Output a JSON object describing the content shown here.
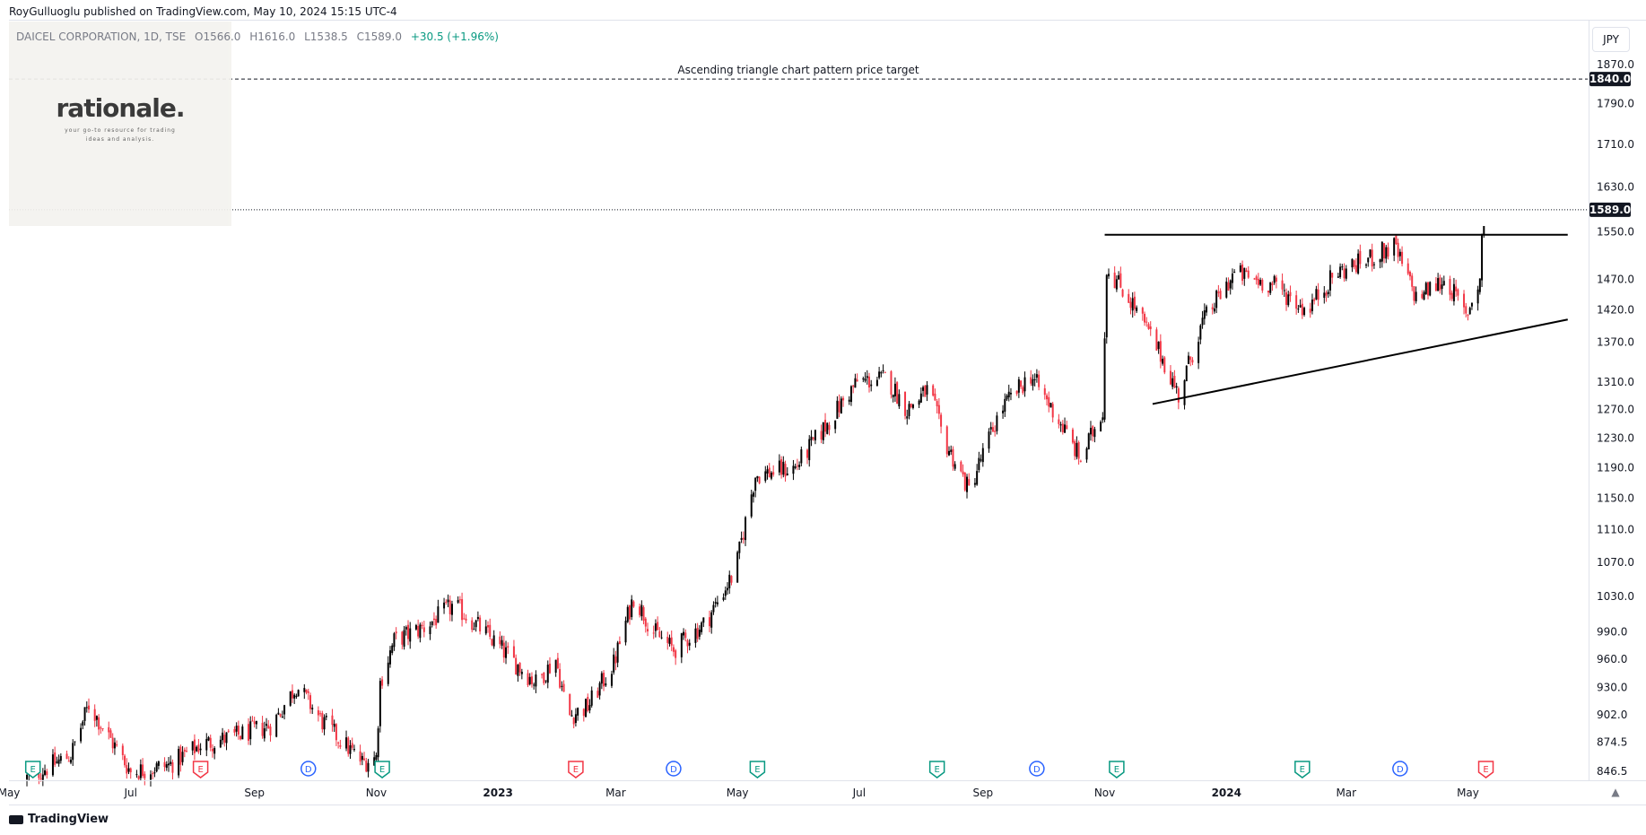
{
  "header": {
    "publish_line": "RoyGulluoglu published on TradingView.com, May 10, 2024 15:15 UTC-4"
  },
  "legend": {
    "symbol": "DAICEL CORPORATION, 1D, TSE",
    "open": "O1566.0",
    "high": "H1616.0",
    "low": "L1538.5",
    "close": "C1589.0",
    "change": "+30.5 (+1.96%)"
  },
  "watermark": {
    "title": "rationale.",
    "subtitle": "your go-to resource for trading ideas and analysis."
  },
  "currency": "JPY",
  "footer": {
    "brand": "TradingView"
  },
  "colors": {
    "up": "#000000",
    "down": "#f23645",
    "accent_black": "#131722",
    "earnings": "#089981",
    "dividend": "#2962ff",
    "earnings_red": "#f23645"
  },
  "chart_data": {
    "type": "candlestick",
    "symbol": "DAICEL CORPORATION",
    "interval": "1D",
    "exchange": "TSE",
    "y_axis_ticks": [
      846.5,
      874.5,
      902.0,
      930.0,
      960.0,
      990.0,
      1030.0,
      1070.0,
      1110.0,
      1150.0,
      1190.0,
      1230.0,
      1270.0,
      1310.0,
      1370.0,
      1420.0,
      1470.0,
      1550.0,
      1630.0,
      1710.0,
      1790.0,
      1870.0
    ],
    "y_axis_scale": "log",
    "ylim": [
      840,
      1900
    ],
    "x_axis_labels": [
      "May",
      "Jul",
      "Sep",
      "Nov",
      "2023",
      "Mar",
      "May",
      "Jul",
      "Sep",
      "Nov",
      "2024",
      "Mar",
      "May"
    ],
    "x_range": [
      "2022-05-01",
      "2024-06-30"
    ],
    "current_price": 1589.0,
    "target_price": 1840.0,
    "target_label": "Ascending triangle chart pattern price target",
    "resistance": {
      "value": 1545,
      "from": "2023-11-01",
      "to": "2024-06-20"
    },
    "support_trendline": [
      {
        "date": "2023-11-25",
        "price": 1278
      },
      {
        "date": "2024-06-20",
        "price": 1405
      }
    ],
    "price_path": [
      [
        "2022-05-10",
        840
      ],
      [
        "2022-06-01",
        862
      ],
      [
        "2022-06-10",
        912
      ],
      [
        "2022-06-20",
        880
      ],
      [
        "2022-07-01",
        846
      ],
      [
        "2022-07-20",
        852
      ],
      [
        "2022-08-05",
        872
      ],
      [
        "2022-08-25",
        882
      ],
      [
        "2022-09-10",
        892
      ],
      [
        "2022-09-22",
        932
      ],
      [
        "2022-10-05",
        895
      ],
      [
        "2022-10-25",
        855
      ],
      [
        "2022-11-01",
        860
      ],
      [
        "2022-11-03",
        935
      ],
      [
        "2022-11-10",
        980
      ],
      [
        "2022-11-25",
        995
      ],
      [
        "2022-12-10",
        1020
      ],
      [
        "2022-12-25",
        990
      ],
      [
        "2023-01-10",
        955
      ],
      [
        "2023-01-20",
        935
      ],
      [
        "2023-01-30",
        960
      ],
      [
        "2023-02-05",
        900
      ],
      [
        "2023-02-15",
        910
      ],
      [
        "2023-02-28",
        955
      ],
      [
        "2023-03-10",
        1030
      ],
      [
        "2023-03-20",
        990
      ],
      [
        "2023-03-30",
        970
      ],
      [
        "2023-04-15",
        1000
      ],
      [
        "2023-04-30",
        1060
      ],
      [
        "2023-05-10",
        1180
      ],
      [
        "2023-05-30",
        1190
      ],
      [
        "2023-06-15",
        1250
      ],
      [
        "2023-06-30",
        1310
      ],
      [
        "2023-07-15",
        1315
      ],
      [
        "2023-07-25",
        1270
      ],
      [
        "2023-08-05",
        1300
      ],
      [
        "2023-08-12",
        1230
      ],
      [
        "2023-08-25",
        1160
      ],
      [
        "2023-09-10",
        1270
      ],
      [
        "2023-09-25",
        1320
      ],
      [
        "2023-10-10",
        1250
      ],
      [
        "2023-10-20",
        1200
      ],
      [
        "2023-10-31",
        1270
      ],
      [
        "2023-11-02",
        1490
      ],
      [
        "2023-11-15",
        1430
      ],
      [
        "2023-11-30",
        1345
      ],
      [
        "2023-12-08",
        1290
      ],
      [
        "2023-12-20",
        1400
      ],
      [
        "2024-01-05",
        1480
      ],
      [
        "2024-01-25",
        1460
      ],
      [
        "2024-02-10",
        1420
      ],
      [
        "2024-02-25",
        1480
      ],
      [
        "2024-03-10",
        1500
      ],
      [
        "2024-03-25",
        1525
      ],
      [
        "2024-04-05",
        1440
      ],
      [
        "2024-04-20",
        1470
      ],
      [
        "2024-04-30",
        1410
      ],
      [
        "2024-05-07",
        1470
      ],
      [
        "2024-05-08",
        1540
      ],
      [
        "2024-05-10",
        1589
      ]
    ],
    "event_markers": [
      {
        "date": "2022-05-13",
        "type": "E",
        "color": "green"
      },
      {
        "date": "2022-08-05",
        "type": "E",
        "color": "red"
      },
      {
        "date": "2022-09-28",
        "type": "D",
        "color": "blue"
      },
      {
        "date": "2022-11-04",
        "type": "E",
        "color": "green"
      },
      {
        "date": "2023-02-09",
        "type": "E",
        "color": "red"
      },
      {
        "date": "2023-03-30",
        "type": "D",
        "color": "blue"
      },
      {
        "date": "2023-05-11",
        "type": "E",
        "color": "green"
      },
      {
        "date": "2023-08-09",
        "type": "E",
        "color": "green"
      },
      {
        "date": "2023-09-28",
        "type": "D",
        "color": "blue"
      },
      {
        "date": "2023-11-07",
        "type": "E",
        "color": "green"
      },
      {
        "date": "2024-02-08",
        "type": "E",
        "color": "green"
      },
      {
        "date": "2024-03-28",
        "type": "D",
        "color": "blue"
      },
      {
        "date": "2024-05-10",
        "type": "E",
        "color": "red"
      }
    ]
  }
}
